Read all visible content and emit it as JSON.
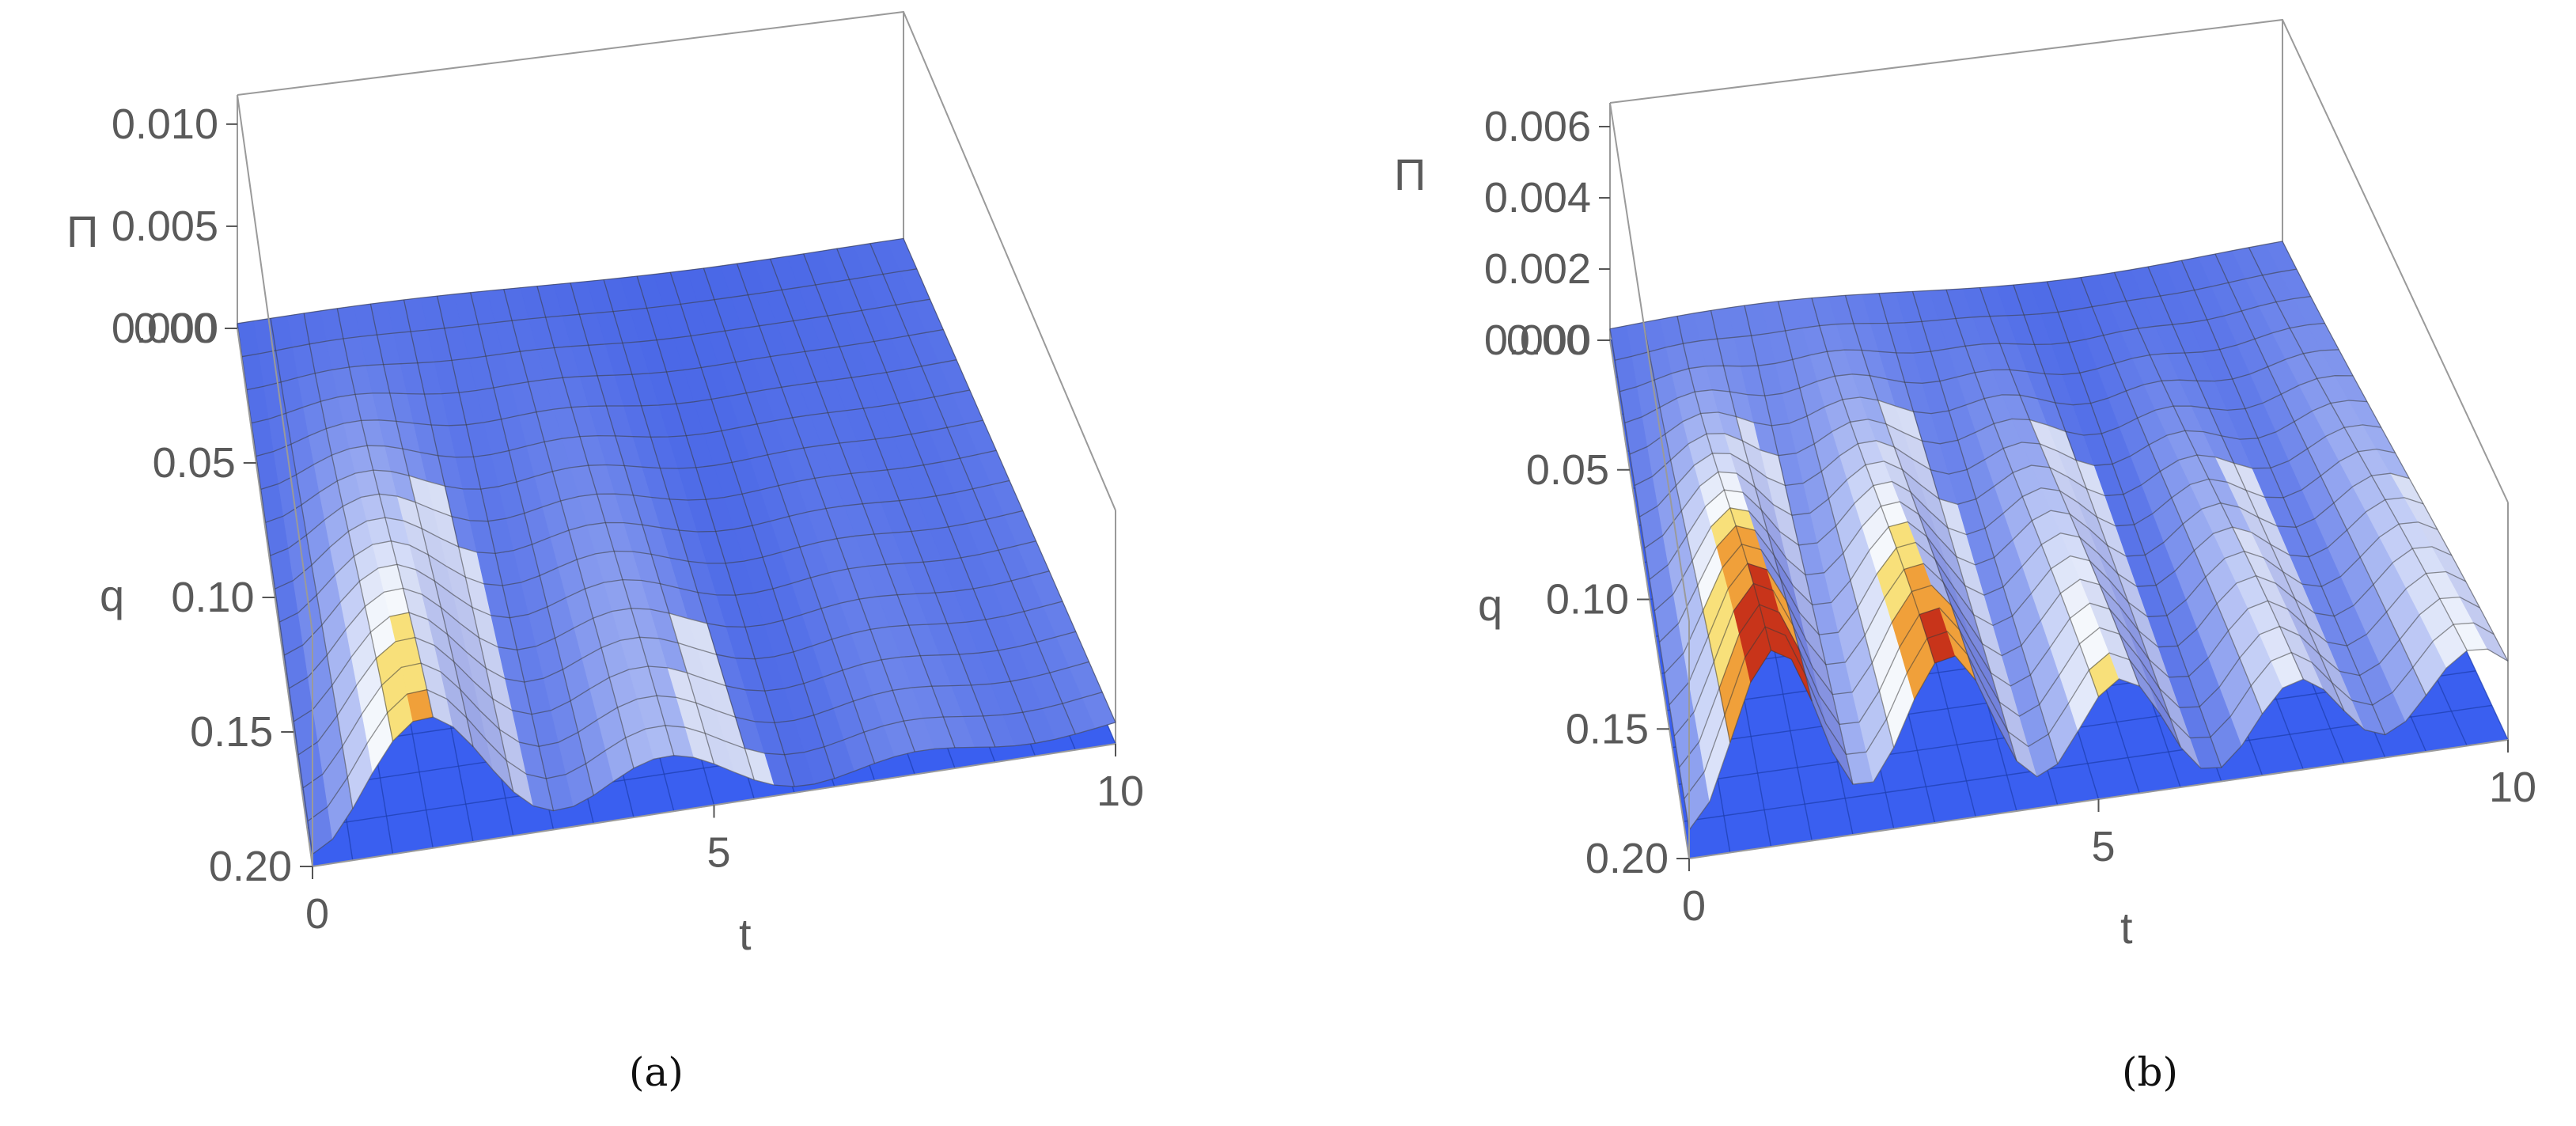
{
  "chart_data": [
    {
      "type": "surface3d",
      "panel": "a",
      "caption": "(a)",
      "z_label": "Π",
      "q_label": "q",
      "t_label": "t",
      "z_ticks": [
        "0.000",
        "0.005",
        "0.010"
      ],
      "z_tick_values": [
        0.0,
        0.005,
        0.01
      ],
      "q_ticks": [
        "0.00",
        "0.05",
        "0.10",
        "0.15",
        "0.20"
      ],
      "q_tick_values": [
        0.0,
        0.05,
        0.1,
        0.15,
        0.2
      ],
      "t_ticks": [
        "0",
        "5",
        "10"
      ],
      "t_tick_values": [
        0,
        5,
        10
      ],
      "t_range": [
        0,
        10
      ],
      "q_range": [
        0,
        0.2
      ],
      "z_range": [
        0,
        0.012
      ],
      "model": {
        "peak": 0.0085,
        "tau": 3.2,
        "omega": 2.05,
        "floor": 0.0006
      }
    },
    {
      "type": "surface3d",
      "panel": "b",
      "caption": "(b)",
      "z_label": "Π",
      "q_label": "q",
      "t_label": "t",
      "z_ticks": [
        "0.000",
        "0.002",
        "0.004",
        "0.006"
      ],
      "z_tick_values": [
        0.0,
        0.002,
        0.004,
        0.006
      ],
      "q_ticks": [
        "0.00",
        "0.05",
        "0.10",
        "0.15",
        "0.20"
      ],
      "q_tick_values": [
        0.0,
        0.05,
        0.1,
        0.15,
        0.2
      ],
      "t_ticks": [
        "0",
        "5",
        "10"
      ],
      "t_tick_values": [
        0,
        5,
        10
      ],
      "t_range": [
        0,
        10
      ],
      "q_range": [
        0,
        0.2
      ],
      "z_range": [
        0,
        0.007
      ],
      "model": {
        "peak": 0.0048,
        "tau": 9.0,
        "omega": 2.95,
        "floor": 0.0008
      }
    }
  ]
}
